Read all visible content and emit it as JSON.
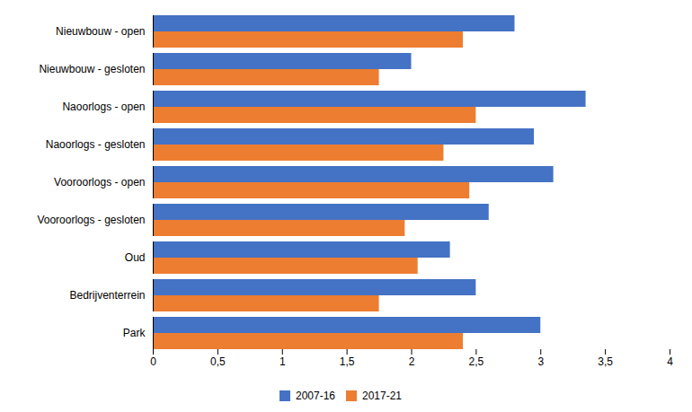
{
  "chart_data": {
    "type": "bar",
    "orientation": "horizontal",
    "categories": [
      "Park",
      "Bedrijventerrein",
      "Oud",
      "Vooroorlogs - gesloten",
      "Vooroorlogs - open",
      "Naoorlogs - gesloten",
      "Naoorlogs - open",
      "Nieuwbouw - gesloten",
      "Nieuwbouw - open"
    ],
    "series": [
      {
        "name": "2007-16",
        "color": "#4472C4",
        "values": [
          3.0,
          2.5,
          2.3,
          2.6,
          3.1,
          2.95,
          3.35,
          2.0,
          2.8
        ]
      },
      {
        "name": "2017-21",
        "color": "#ED7D31",
        "values": [
          2.4,
          1.75,
          2.05,
          1.95,
          2.45,
          2.25,
          2.5,
          1.75,
          2.4
        ]
      }
    ],
    "xlim": [
      0,
      4
    ],
    "xticks": [
      0,
      {
        "value": 0.5,
        "label": "0,5"
      },
      1,
      {
        "value": 1.5,
        "label": "1,5"
      },
      2,
      {
        "value": 2.5,
        "label": "2,5"
      },
      3,
      {
        "value": 3.5,
        "label": "3,5"
      },
      4
    ],
    "grid": false,
    "legend": "bottom"
  }
}
